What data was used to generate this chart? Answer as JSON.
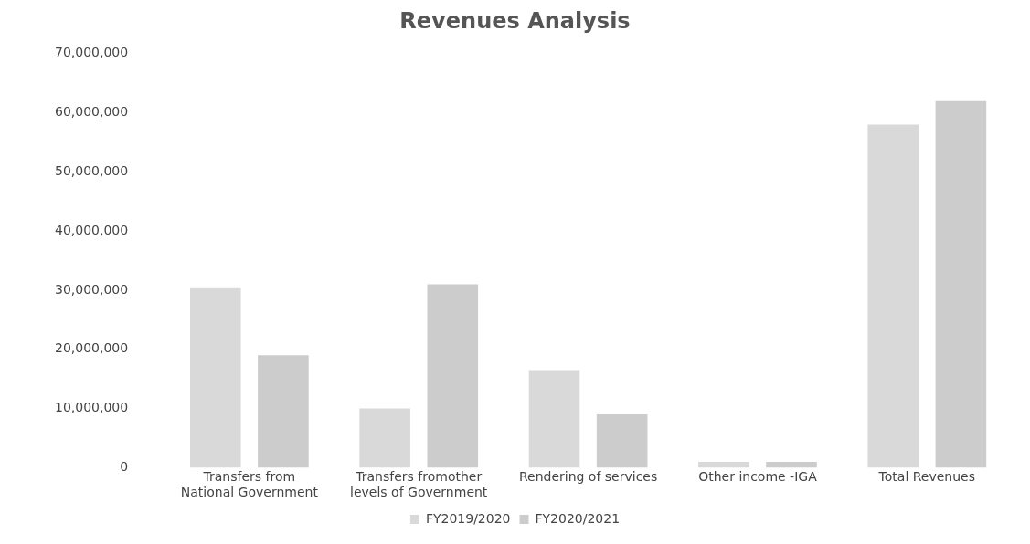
{
  "chart_data": {
    "type": "bar",
    "title": "Revenues Analysis",
    "categories": [
      "Transfers from National Government",
      "Transfers fromother levels of Government",
      "Rendering of services",
      "Other income -IGA",
      "Total Revenues"
    ],
    "series": [
      {
        "name": "FY2019/2020",
        "color": "#d9d9d9",
        "values": [
          30500000,
          10000000,
          16500000,
          1000000,
          58000000
        ]
      },
      {
        "name": "FY2020/2021",
        "color": "#cccccc",
        "values": [
          19000000,
          31000000,
          9000000,
          1000000,
          62000000
        ]
      }
    ],
    "ylim": [
      0,
      70000000
    ],
    "yticks": [
      {
        "value": 0,
        "label": "0"
      },
      {
        "value": 10000000,
        "label": "10,000,000"
      },
      {
        "value": 20000000,
        "label": "20,000,000"
      },
      {
        "value": 30000000,
        "label": "30,000,000"
      },
      {
        "value": 40000000,
        "label": "40,000,000"
      },
      {
        "value": 50000000,
        "label": "50,000,000"
      },
      {
        "value": 60000000,
        "label": "60,000,000"
      },
      {
        "value": 70000000,
        "label": "70,000,000"
      }
    ],
    "grid": false,
    "legend": "bottom"
  }
}
